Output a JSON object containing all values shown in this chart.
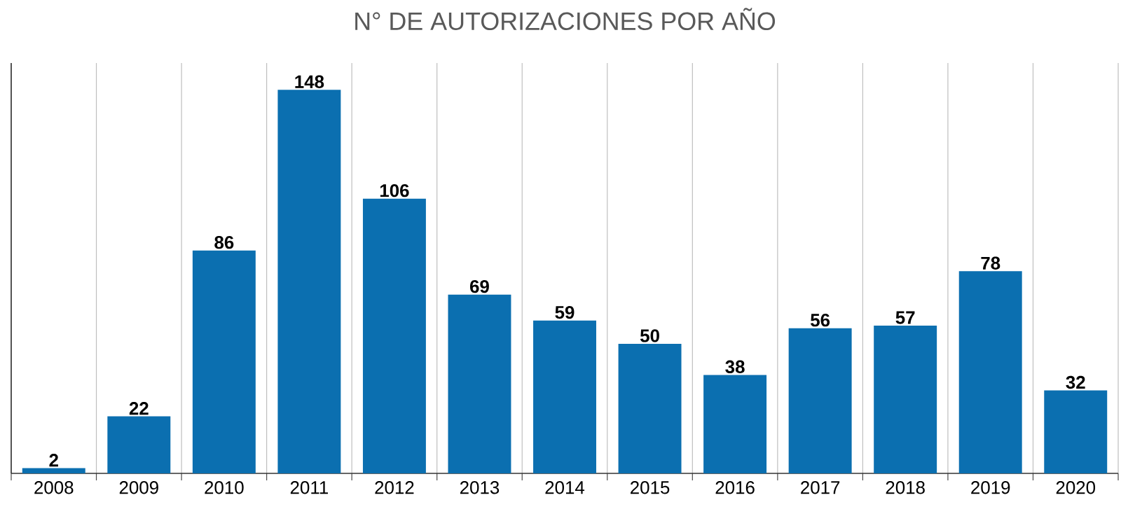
{
  "chart_data": {
    "type": "bar",
    "title": "N° DE AUTORIZACIONES POR AÑO",
    "categories": [
      "2008",
      "2009",
      "2010",
      "2011",
      "2012",
      "2013",
      "2014",
      "2015",
      "2016",
      "2017",
      "2018",
      "2019",
      "2020"
    ],
    "values": [
      2,
      22,
      86,
      148,
      106,
      69,
      59,
      50,
      38,
      56,
      57,
      78,
      32
    ],
    "color": "#0b6fb0",
    "data_labels": true,
    "grid": "x"
  }
}
